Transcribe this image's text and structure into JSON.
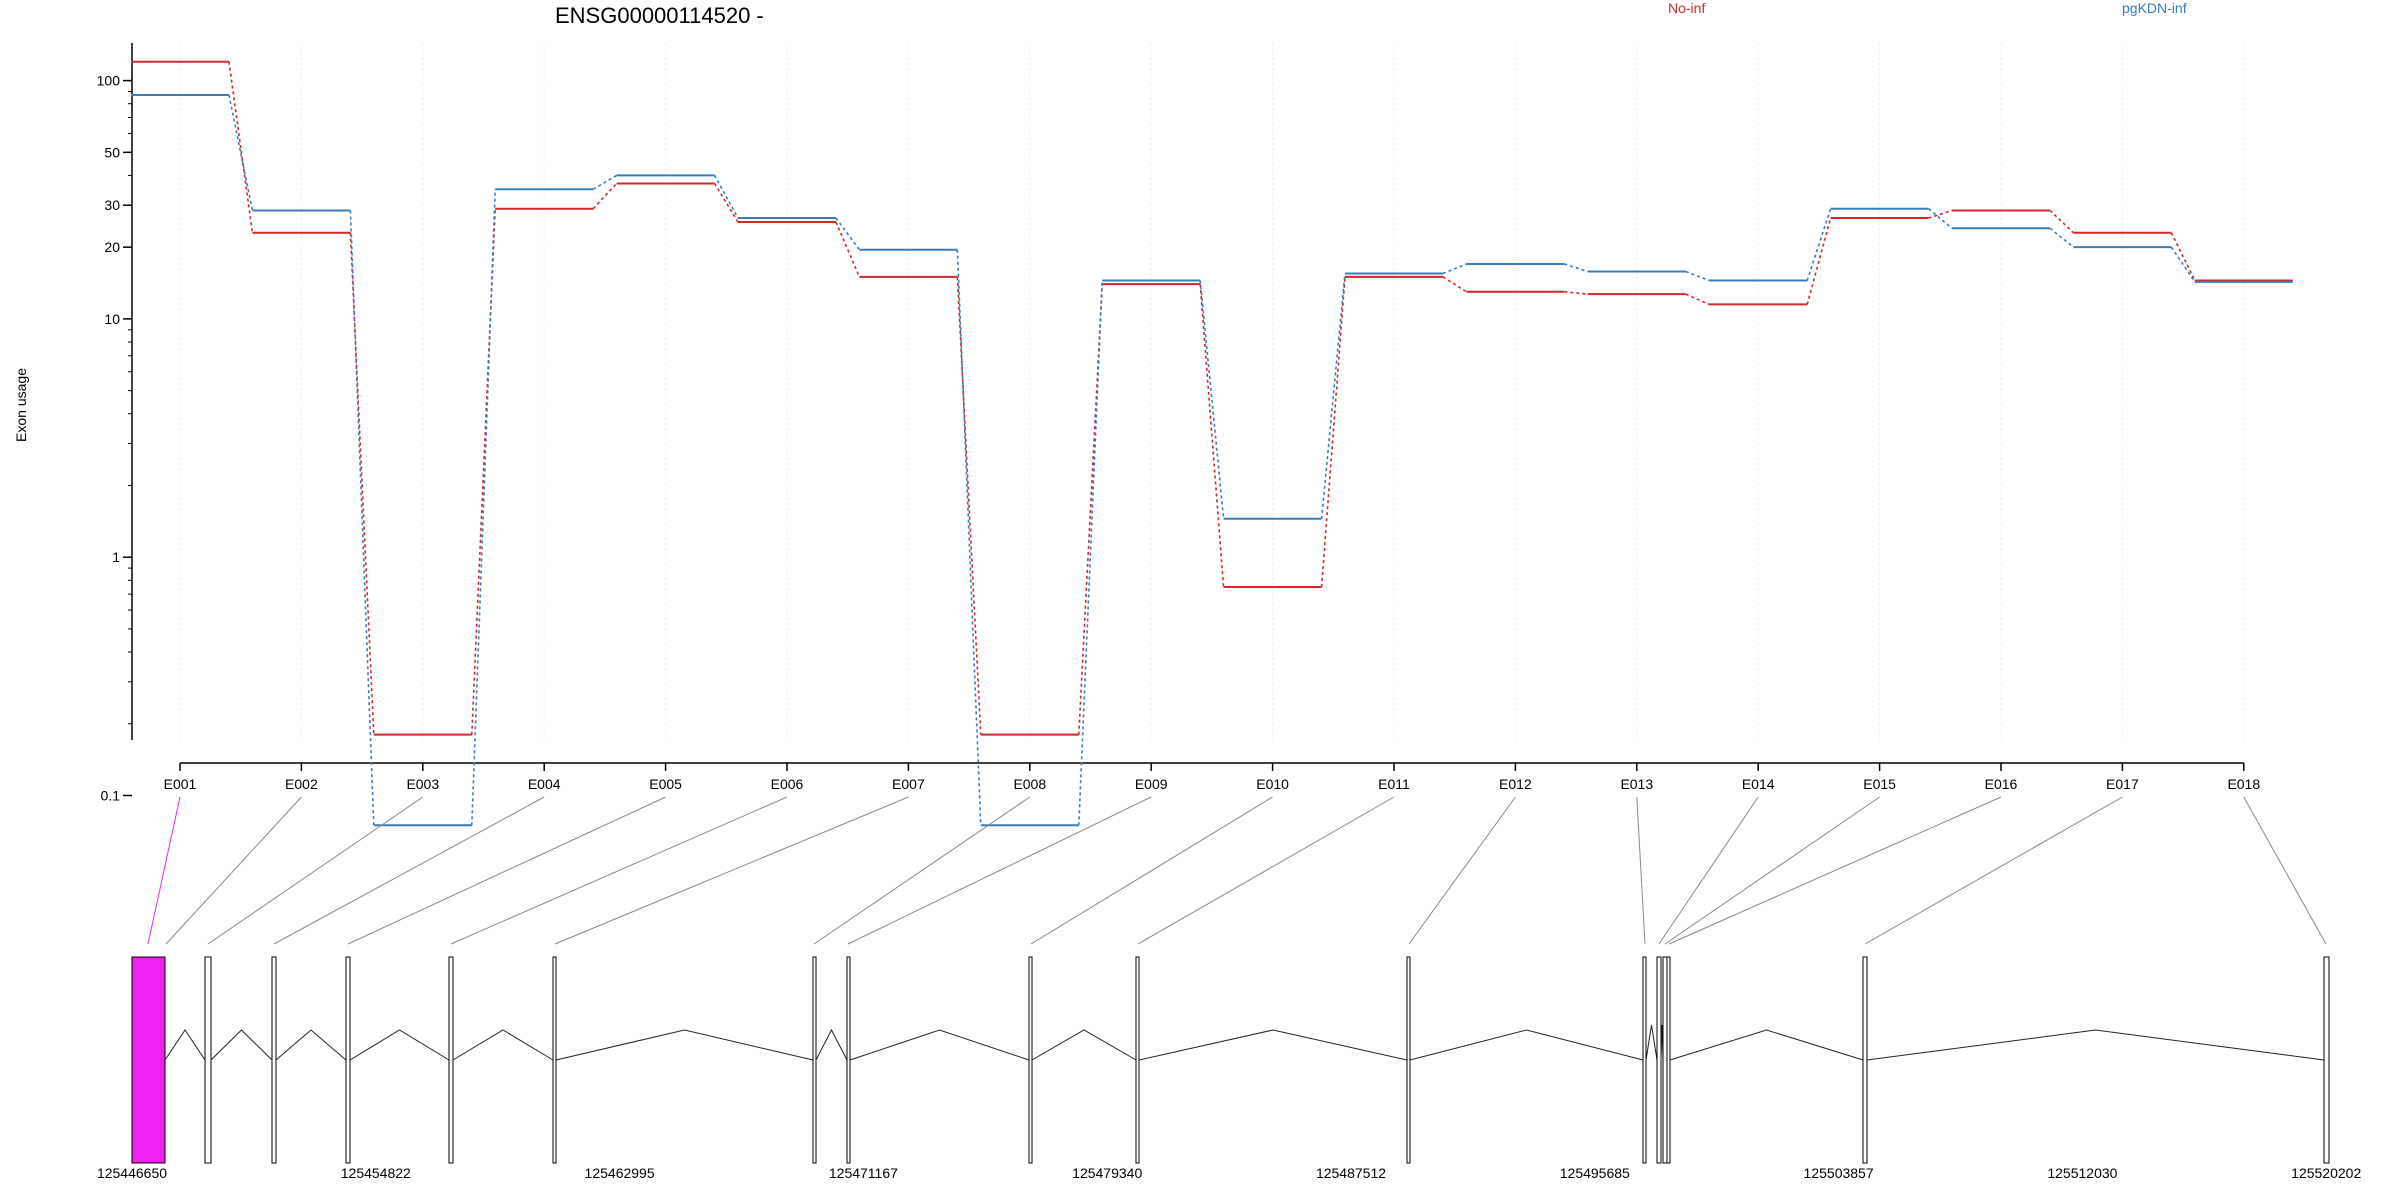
{
  "chart_data": {
    "type": "line",
    "title": "ENSG00000114520 -",
    "ylabel": "Exon usage",
    "yscale": "log",
    "yticks": [
      0.1,
      1,
      10,
      20,
      30,
      50,
      100
    ],
    "ytick_labels": [
      "0.1",
      "1",
      "10",
      "20",
      "30",
      "50",
      "100"
    ],
    "categories": [
      "E001",
      "E002",
      "E003",
      "E004",
      "E005",
      "E006",
      "E007",
      "E008",
      "E009",
      "E010",
      "E011",
      "E012",
      "E013",
      "E014",
      "E015",
      "E016",
      "E017",
      "E018"
    ],
    "legend_placement": "top",
    "series": [
      {
        "name": "No-inf",
        "color": "#d62728",
        "values": [
          120,
          23,
          0.18,
          29,
          37,
          25.5,
          15,
          0.18,
          14,
          0.75,
          15,
          13,
          12.7,
          11.5,
          26.5,
          28.5,
          23,
          14.5
        ]
      },
      {
        "name": "pgKDN-inf",
        "color": "#377eb8",
        "values": [
          87,
          28.5,
          0.075,
          35,
          40,
          26.5,
          19.5,
          0.075,
          14.5,
          1.45,
          15.5,
          17,
          15.8,
          14.5,
          29,
          24,
          20,
          14.3
        ]
      }
    ],
    "gene_model": {
      "coordinate_labels": [
        "125446650",
        "125454822",
        "125462995",
        "125471167",
        "125479340",
        "125487512",
        "125495685",
        "125503857",
        "125512030",
        "125520202"
      ],
      "highlight_color": "#ee22ee",
      "highlighted_exon": "E001"
    }
  }
}
